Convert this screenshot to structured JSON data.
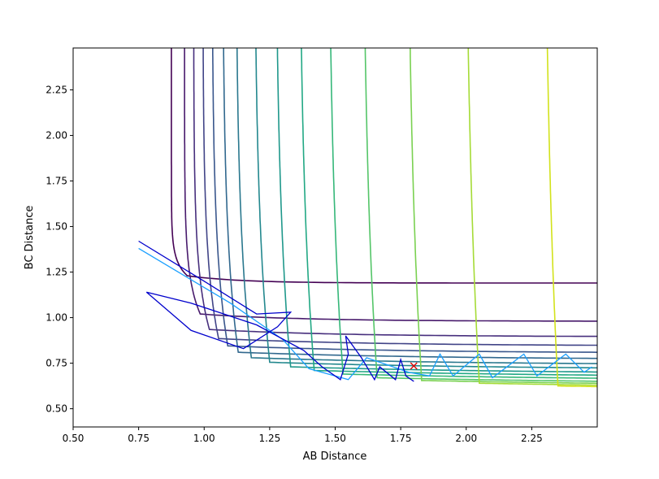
{
  "chart_data": {
    "type": "line",
    "subtype": "contour plot with trajectory",
    "title": "",
    "xlabel": "AB Distance",
    "ylabel": "BC Distance",
    "xlim": [
      0.5,
      2.5
    ],
    "ylim": [
      0.4,
      2.48
    ],
    "xticks": [
      0.5,
      0.75,
      1.0,
      1.25,
      1.5,
      1.75,
      2.0,
      2.25
    ],
    "xtick_labels": [
      "0.50",
      "0.75",
      "1.00",
      "1.25",
      "1.50",
      "1.75",
      "2.00",
      "2.25"
    ],
    "yticks": [
      0.5,
      0.75,
      1.0,
      1.25,
      1.5,
      1.75,
      2.0,
      2.25
    ],
    "ytick_labels": [
      "0.50",
      "0.75",
      "1.00",
      "1.25",
      "1.50",
      "1.75",
      "2.00",
      "2.25"
    ],
    "grid": false,
    "colormap": "viridis",
    "contours": [
      {
        "level": 0.0,
        "x0": 0.935,
        "y0": 1.23,
        "ax": 5.0,
        "ay": 12.0,
        "color": "#440154"
      },
      {
        "level": 0.05,
        "x0": 0.985,
        "y0": 1.02,
        "ax": 2.6,
        "ay": 5.0,
        "color": "#481a6c"
      },
      {
        "level": 0.1,
        "x0": 1.02,
        "y0": 0.935,
        "ax": 2.0,
        "ay": 3.2,
        "color": "#472f7d"
      },
      {
        "level": 0.15,
        "x0": 1.055,
        "y0": 0.885,
        "ax": 1.7,
        "ay": 2.4,
        "color": "#414487"
      },
      {
        "level": 0.2,
        "x0": 1.09,
        "y0": 0.845,
        "ax": 1.5,
        "ay": 1.9,
        "color": "#39568c"
      },
      {
        "level": 0.25,
        "x0": 1.13,
        "y0": 0.81,
        "ax": 1.35,
        "ay": 1.6,
        "color": "#31688e"
      },
      {
        "level": 0.3,
        "x0": 1.18,
        "y0": 0.78,
        "ax": 1.25,
        "ay": 1.4,
        "color": "#2a788e"
      },
      {
        "level": 0.35,
        "x0": 1.25,
        "y0": 0.755,
        "ax": 1.15,
        "ay": 1.2,
        "color": "#23888e"
      },
      {
        "level": 0.4,
        "x0": 1.33,
        "y0": 0.73,
        "ax": 1.05,
        "ay": 1.05,
        "color": "#1f988b"
      },
      {
        "level": 0.45,
        "x0": 1.42,
        "y0": 0.71,
        "ax": 0.95,
        "ay": 0.95,
        "color": "#22a884"
      },
      {
        "level": 0.5,
        "x0": 1.53,
        "y0": 0.69,
        "ax": 0.85,
        "ay": 0.85,
        "color": "#35b779"
      },
      {
        "level": 0.55,
        "x0": 1.66,
        "y0": 0.67,
        "ax": 0.78,
        "ay": 0.78,
        "color": "#54c568"
      },
      {
        "level": 0.6,
        "x0": 1.83,
        "y0": 0.655,
        "ax": 0.72,
        "ay": 0.72,
        "color": "#7ad151"
      },
      {
        "level": 0.65,
        "x0": 2.05,
        "y0": 0.64,
        "ax": 0.66,
        "ay": 0.66,
        "color": "#a5db36"
      },
      {
        "level": 0.7,
        "x0": 2.35,
        "y0": 0.625,
        "ax": 0.6,
        "ay": 0.6,
        "color": "#d2e21b"
      },
      {
        "level": 0.75,
        "x0": 2.7,
        "y0": 0.615,
        "ax": 0.55,
        "ay": 0.55,
        "color": "#fde725"
      }
    ],
    "trajectory": {
      "color": "#0000cc",
      "points": [
        [
          0.75,
          1.42
        ],
        [
          1.0,
          1.2
        ],
        [
          1.2,
          1.02
        ],
        [
          1.33,
          1.03
        ],
        [
          1.28,
          0.95
        ],
        [
          1.15,
          0.83
        ],
        [
          0.95,
          0.93
        ],
        [
          0.78,
          1.14
        ],
        [
          0.95,
          1.08
        ],
        [
          1.2,
          0.96
        ],
        [
          1.38,
          0.82
        ],
        [
          1.45,
          0.73
        ],
        [
          1.52,
          0.66
        ],
        [
          1.55,
          0.8
        ],
        [
          1.54,
          0.9
        ],
        [
          1.6,
          0.78
        ],
        [
          1.65,
          0.66
        ],
        [
          1.67,
          0.73
        ],
        [
          1.73,
          0.66
        ],
        [
          1.75,
          0.77
        ],
        [
          1.77,
          0.68
        ],
        [
          1.8,
          0.65
        ]
      ]
    },
    "secondary_trajectory": {
      "color": "#1a9fff",
      "points": [
        [
          0.75,
          1.38
        ],
        [
          1.1,
          1.08
        ],
        [
          1.3,
          0.88
        ],
        [
          1.4,
          0.72
        ],
        [
          1.55,
          0.66
        ],
        [
          1.62,
          0.78
        ],
        [
          1.7,
          0.74
        ],
        [
          1.78,
          0.7
        ],
        [
          1.86,
          0.68
        ],
        [
          1.9,
          0.8
        ],
        [
          1.95,
          0.68
        ],
        [
          2.05,
          0.8
        ],
        [
          2.1,
          0.67
        ],
        [
          2.22,
          0.8
        ],
        [
          2.27,
          0.68
        ],
        [
          2.38,
          0.8
        ],
        [
          2.45,
          0.7
        ],
        [
          2.48,
          0.73
        ]
      ]
    },
    "marker": {
      "x": 1.8,
      "y": 0.735,
      "symbol": "x",
      "color": "#dd0000"
    }
  }
}
